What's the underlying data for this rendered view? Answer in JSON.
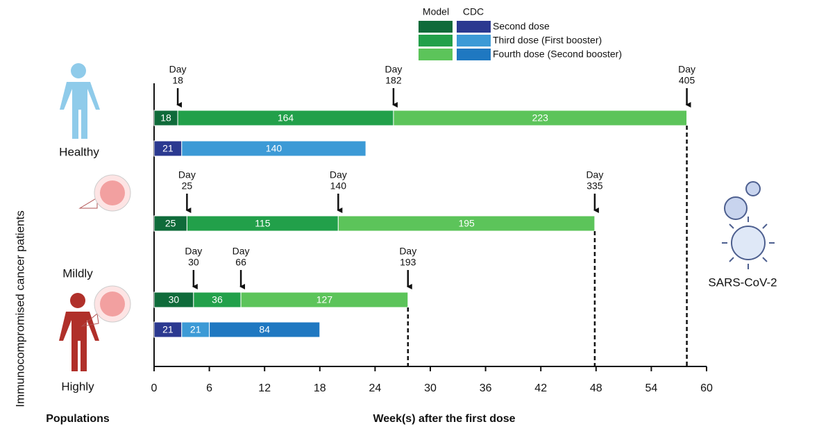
{
  "chart_data": {
    "type": "timeline-bar",
    "xlabel": "Week(s) after the first dose",
    "ylabel": "Immunocompromised cancer patients",
    "row_axis_title": "Populations",
    "groups": [
      "Healthy",
      "Mildly",
      "Highly"
    ],
    "side_label": "SARS-CoV-2",
    "legend": {
      "headers": [
        "Model",
        "CDC"
      ],
      "doses": [
        {
          "name": "Second dose",
          "Model": "#0f6b3a",
          "CDC": "#2b3990"
        },
        {
          "name": "Third dose (First booster)",
          "Model": "#22a04a",
          "CDC": "#3c9ad6"
        },
        {
          "name": "Fourth dose (Second booster)",
          "Model": "#5cc45a",
          "CDC": "#1f78c1"
        }
      ]
    },
    "xlim": [
      0,
      420
    ],
    "xticks": [
      {
        "value": 0,
        "label": "0"
      },
      {
        "value": 42,
        "label": "6"
      },
      {
        "value": 84,
        "label": "12"
      },
      {
        "value": 126,
        "label": "18"
      },
      {
        "value": 168,
        "label": "24"
      },
      {
        "value": 210,
        "label": "30"
      },
      {
        "value": 252,
        "label": "36"
      },
      {
        "value": 294,
        "label": "42"
      },
      {
        "value": 336,
        "label": "48"
      },
      {
        "value": 378,
        "label": "54"
      },
      {
        "value": 420,
        "label": "60"
      }
    ],
    "rows": [
      {
        "source": "Model",
        "segments": [
          {
            "dose": "Second dose",
            "value": 18
          },
          {
            "dose": "Third dose (First booster)",
            "value": 164
          },
          {
            "dose": "Fourth dose (Second booster)",
            "value": 223
          }
        ],
        "markers": [
          {
            "label": "Day",
            "day": 18
          },
          {
            "label": "Day",
            "day": 182
          },
          {
            "label": "Day",
            "day": 405
          }
        ]
      },
      {
        "source": "CDC",
        "segments": [
          {
            "dose": "Second dose",
            "value": 21
          },
          {
            "dose": "Third dose (First booster)",
            "value": 140
          }
        ],
        "markers": []
      },
      {
        "source": "Model",
        "segments": [
          {
            "dose": "Second dose",
            "value": 25
          },
          {
            "dose": "Third dose (First booster)",
            "value": 115
          },
          {
            "dose": "Fourth dose (Second booster)",
            "value": 195
          }
        ],
        "markers": [
          {
            "label": "Day",
            "day": 25
          },
          {
            "label": "Day",
            "day": 140
          },
          {
            "label": "Day",
            "day": 335
          }
        ]
      },
      {
        "source": "Model",
        "segments": [
          {
            "dose": "Second dose",
            "value": 30
          },
          {
            "dose": "Third dose (First booster)",
            "value": 36
          },
          {
            "dose": "Fourth dose (Second booster)",
            "value": 127
          }
        ],
        "markers": [
          {
            "label": "Day",
            "day": 30
          },
          {
            "label": "Day",
            "day": 66
          },
          {
            "label": "Day",
            "day": 193
          }
        ]
      },
      {
        "source": "CDC",
        "segments": [
          {
            "dose": "Second dose",
            "value": 21
          },
          {
            "dose": "Third dose (First booster)",
            "value": 21
          },
          {
            "dose": "Fourth dose (Second booster)",
            "value": 84
          }
        ],
        "markers": []
      }
    ]
  }
}
